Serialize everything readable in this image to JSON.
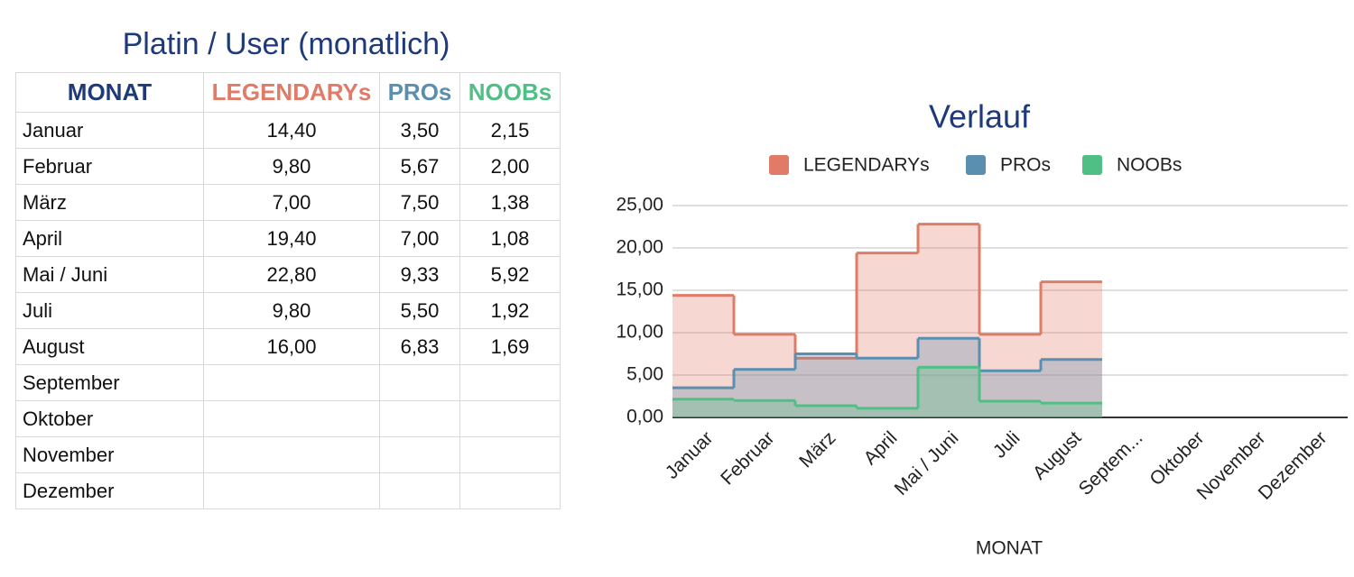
{
  "table": {
    "title": "Platin / User (monatlich)",
    "header": [
      "MONAT",
      "LEGENDARYs",
      "PROs",
      "NOOBs"
    ],
    "rows": [
      [
        "Januar",
        "14,40",
        "3,50",
        "2,15"
      ],
      [
        "Februar",
        "9,80",
        "5,67",
        "2,00"
      ],
      [
        "März",
        "7,00",
        "7,50",
        "1,38"
      ],
      [
        "April",
        "19,40",
        "7,00",
        "1,08"
      ],
      [
        "Mai / Juni",
        "22,80",
        "9,33",
        "5,92"
      ],
      [
        "Juli",
        "9,80",
        "5,50",
        "1,92"
      ],
      [
        "August",
        "16,00",
        "6,83",
        "1,69"
      ],
      [
        "September"
      ],
      [
        "Oktober"
      ],
      [
        "November"
      ],
      [
        "Dezember"
      ]
    ]
  },
  "chart_data": {
    "type": "stepped-area",
    "title": "Verlauf",
    "x_label": "MONAT",
    "categories": [
      "Januar",
      "Februar",
      "März",
      "April",
      "Mai / Juni",
      "Juli",
      "August",
      "Septem...",
      "Oktober",
      "November",
      "Dezember"
    ],
    "series": [
      {
        "name": "LEGENDARYs",
        "color": "#e07b67",
        "values": [
          14.4,
          9.8,
          7.0,
          19.4,
          22.8,
          9.8,
          16.0,
          null,
          null,
          null,
          null
        ]
      },
      {
        "name": "PROs",
        "color": "#5a8fb0",
        "values": [
          3.5,
          5.67,
          7.5,
          7.0,
          9.33,
          5.5,
          6.83,
          null,
          null,
          null,
          null
        ]
      },
      {
        "name": "NOOBs",
        "color": "#4fbf86",
        "values": [
          2.15,
          2.0,
          1.38,
          1.08,
          5.92,
          1.92,
          1.69,
          null,
          null,
          null,
          null
        ]
      }
    ],
    "ylim": [
      0,
      25
    ],
    "yticks": [
      {
        "value": 0,
        "label": "0,00"
      },
      {
        "value": 5,
        "label": "5,00"
      },
      {
        "value": 10,
        "label": "10,00"
      },
      {
        "value": 15,
        "label": "15,00"
      },
      {
        "value": 20,
        "label": "20,00"
      },
      {
        "value": 25,
        "label": "25,00"
      }
    ],
    "grid": true,
    "legend": "top"
  }
}
